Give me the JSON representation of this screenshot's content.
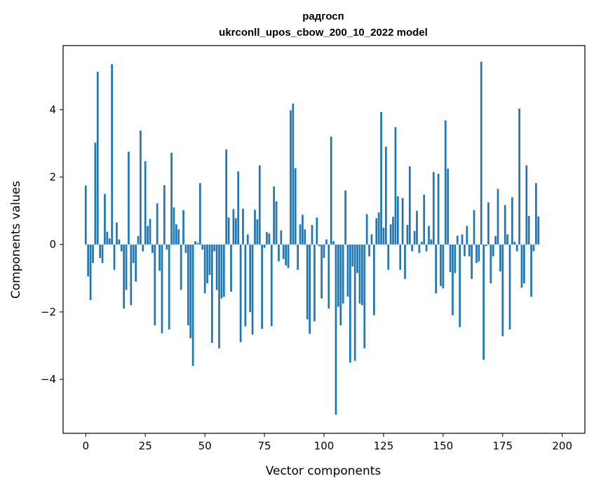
{
  "chart_data": {
    "type": "bar",
    "title": "радгосп",
    "subtitle": "ukrconll_upos_cbow_200_10_2022 model",
    "xlabel": "Vector components",
    "ylabel": "Components values",
    "xlim": [
      -9.5,
      209.5
    ],
    "ylim": [
      -5.6,
      5.9
    ],
    "xticks": [
      0,
      25,
      50,
      75,
      100,
      125,
      150,
      175,
      200
    ],
    "yticks": [
      -4,
      -2,
      0,
      2,
      4
    ],
    "ytick_labels": [
      "−4",
      "−2",
      "0",
      "2",
      "4"
    ],
    "bar_color": "#1f77b4",
    "grid": false,
    "legend": "none",
    "values": [
      1.75,
      -0.95,
      -1.65,
      -0.55,
      3.02,
      5.12,
      -0.4,
      -0.55,
      1.5,
      0.38,
      0.18,
      5.35,
      -0.75,
      0.65,
      0.15,
      -0.2,
      -1.9,
      -1.35,
      2.75,
      -1.8,
      -0.55,
      -1.1,
      0.25,
      3.38,
      -0.2,
      2.47,
      0.55,
      0.76,
      -0.25,
      -2.4,
      1.22,
      -0.78,
      -2.63,
      1.76,
      -0.15,
      -2.52,
      2.72,
      1.1,
      0.6,
      0.45,
      -1.35,
      1.02,
      -0.25,
      -2.4,
      -2.78,
      -3.6,
      0.1,
      0.05,
      1.82,
      -0.15,
      -1.45,
      -1.15,
      -0.9,
      -2.92,
      -0.2,
      -1.35,
      -3.08,
      -1.6,
      -1.55,
      2.82,
      0.8,
      -1.4,
      1.05,
      0.78,
      2.17,
      -2.9,
      1.06,
      -2.43,
      0.3,
      -2.0,
      -2.67,
      1.03,
      0.75,
      2.35,
      -2.5,
      -0.1,
      0.37,
      0.33,
      -2.42,
      1.72,
      1.28,
      -0.5,
      0.42,
      -0.43,
      -0.62,
      -0.7,
      3.98,
      4.18,
      2.26,
      -0.75,
      0.6,
      0.88,
      0.45,
      -2.22,
      -2.65,
      0.58,
      -2.28,
      0.8,
      -0.05,
      -1.6,
      -0.4,
      0.15,
      -1.9,
      3.2,
      0.1,
      -5.05,
      -1.85,
      -2.4,
      -1.75,
      1.6,
      -1.55,
      -3.5,
      -0.65,
      -3.45,
      -0.85,
      -1.75,
      -1.8,
      -3.08,
      0.9,
      -0.35,
      0.3,
      -2.1,
      0.78,
      0.95,
      3.93,
      0.5,
      2.9,
      -0.75,
      0.6,
      0.82,
      3.48,
      1.43,
      -0.75,
      1.38,
      -1.02,
      0.58,
      2.32,
      -0.2,
      0.4,
      1.0,
      -0.25,
      0.08,
      1.48,
      -0.2,
      0.55,
      0.15,
      2.15,
      -1.45,
      2.1,
      -1.23,
      -1.3,
      3.68,
      2.25,
      -0.82,
      -2.1,
      -0.85,
      0.26,
      -2.45,
      0.3,
      -0.35,
      0.55,
      -0.35,
      -1.02,
      1.02,
      -0.55,
      -0.5,
      5.42,
      -3.42,
      -0.05,
      1.25,
      -1.15,
      -0.35,
      0.25,
      1.65,
      -0.8,
      -2.72,
      1.17,
      0.3,
      -2.52,
      1.4,
      0.08,
      -0.2,
      4.03,
      -1.28,
      -1.15,
      2.35,
      0.85,
      -1.55,
      -0.2,
      1.82,
      0.83
    ]
  }
}
